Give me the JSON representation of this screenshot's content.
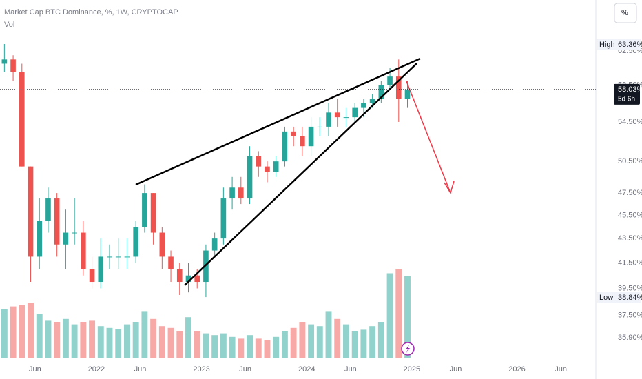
{
  "chart_data": {
    "type": "candlestick",
    "title": "Market Cap BTC Dominance, %, 1W, CRYPTOCAP",
    "x": [
      "2021-02",
      "2021-03",
      "2021-04",
      "2021-05",
      "2021-06",
      "2021-07",
      "2021-08",
      "2021-09",
      "2021-10",
      "2021-11",
      "2021-12",
      "2022-01",
      "2022-02",
      "2022-03",
      "2022-04",
      "2022-05",
      "2022-06",
      "2022-07",
      "2022-08",
      "2022-09",
      "2022-10",
      "2022-11",
      "2022-12",
      "2023-01",
      "2023-02",
      "2023-03",
      "2023-04",
      "2023-05",
      "2023-06",
      "2023-07",
      "2023-08",
      "2023-09",
      "2023-10",
      "2023-11",
      "2023-12",
      "2024-01",
      "2024-02",
      "2024-03",
      "2024-04",
      "2024-05",
      "2024-06",
      "2024-07",
      "2024-08",
      "2024-09",
      "2024-10",
      "2024-11",
      "2024-12"
    ],
    "open": [
      61,
      61.5,
      60,
      50,
      42,
      45,
      47,
      43,
      44,
      44,
      41,
      40,
      42,
      42,
      42,
      42,
      44.5,
      47.5,
      44,
      42,
      41,
      40,
      40.5,
      40,
      42.5,
      43.5,
      47,
      48,
      47,
      51,
      50,
      49.5,
      50.5,
      53.5,
      53,
      52,
      54,
      54,
      55.5,
      55,
      55,
      56,
      56.5,
      57,
      58.5,
      59.5,
      57
    ],
    "high": [
      63.36,
      62,
      61,
      50,
      47,
      48,
      47.5,
      46,
      47,
      45,
      42,
      43.5,
      43,
      43.5,
      43.5,
      45,
      48.3,
      47.5,
      44.5,
      42.5,
      41.5,
      41.5,
      41,
      43,
      44,
      48,
      49,
      49,
      52,
      51.5,
      50.5,
      51,
      54,
      54,
      54,
      55,
      55,
      56.5,
      57,
      56,
      56.5,
      57,
      57.5,
      59,
      60.5,
      61.5,
      59
    ],
    "low": [
      60,
      59,
      50,
      40,
      41,
      44,
      42,
      41,
      43,
      40.5,
      39.5,
      39.5,
      41,
      41,
      41,
      41.5,
      44,
      43,
      41,
      40,
      39,
      39.2,
      39.5,
      38.84,
      42,
      43,
      46,
      46.5,
      46.5,
      49,
      48.5,
      49,
      50,
      52,
      51,
      51,
      53,
      53,
      54,
      54,
      54.5,
      55,
      56,
      56.5,
      58,
      54.5,
      56
    ],
    "close": [
      61.5,
      60,
      50,
      42,
      45,
      47,
      43,
      44,
      44,
      41,
      40,
      42,
      42,
      42,
      42,
      44.5,
      47.5,
      44,
      42,
      41,
      40,
      40.5,
      40,
      42.5,
      43.5,
      47,
      48,
      47,
      51,
      50,
      49.5,
      50.5,
      53.5,
      53,
      52,
      54,
      54,
      55.5,
      55,
      55,
      56,
      56.5,
      57,
      58.5,
      59.5,
      57,
      58.03
    ],
    "volume": {
      "name": "Vol",
      "values": [
        55,
        58,
        60,
        62,
        50,
        42,
        40,
        44,
        38,
        40,
        42,
        36,
        34,
        33,
        38,
        40,
        52,
        44,
        36,
        34,
        30,
        46,
        30,
        28,
        26,
        28,
        24,
        22,
        26,
        22,
        20,
        24,
        30,
        34,
        40,
        38,
        36,
        52,
        44,
        38,
        30,
        32,
        36,
        40,
        95,
        100,
        92
      ]
    },
    "up_color": "#26a69a",
    "down_color": "#ef5350",
    "log": true,
    "grid": false,
    "ylim": [
      34.5,
      69
    ],
    "yticks": [
      {
        "value": 62.5,
        "label": "62.50%"
      },
      {
        "value": 58.5,
        "label": "58.50%"
      },
      {
        "value": 54.5,
        "label": "54.50%"
      },
      {
        "value": 50.5,
        "label": "50.50%"
      },
      {
        "value": 47.5,
        "label": "47.50%"
      },
      {
        "value": 45.5,
        "label": "45.50%"
      },
      {
        "value": 43.5,
        "label": "43.50%"
      },
      {
        "value": 41.5,
        "label": "41.50%"
      },
      {
        "value": 39.5,
        "label": "39.50%"
      },
      {
        "value": 37.5,
        "label": "37.50%"
      },
      {
        "value": 35.9,
        "label": "35.90%"
      }
    ],
    "xlim": [
      "2021-02",
      "2026-10"
    ],
    "xticks": [
      {
        "value": "2021-06",
        "label": "Jun"
      },
      {
        "value": "2022-01",
        "label": "2022"
      },
      {
        "value": "2022-06",
        "label": "Jun"
      },
      {
        "value": "2023-01",
        "label": "2023"
      },
      {
        "value": "2023-06",
        "label": "Jun"
      },
      {
        "value": "2024-01",
        "label": "2024"
      },
      {
        "value": "2024-06",
        "label": "Jun"
      },
      {
        "value": "2025-01",
        "label": "2025"
      },
      {
        "value": "2025-06",
        "label": "Jun"
      },
      {
        "value": "2026-01",
        "label": "2026"
      },
      {
        "value": "2026-06",
        "label": "Jun"
      }
    ],
    "high_marker": {
      "text": "High",
      "value": 63.36,
      "label": "63.36%"
    },
    "low_marker": {
      "text": "Low",
      "value": 38.84,
      "label": "38.84%"
    },
    "last_price": {
      "value": 58.03,
      "label": "58.03%"
    },
    "countdown": "5d 6h",
    "scale_button": "%"
  }
}
